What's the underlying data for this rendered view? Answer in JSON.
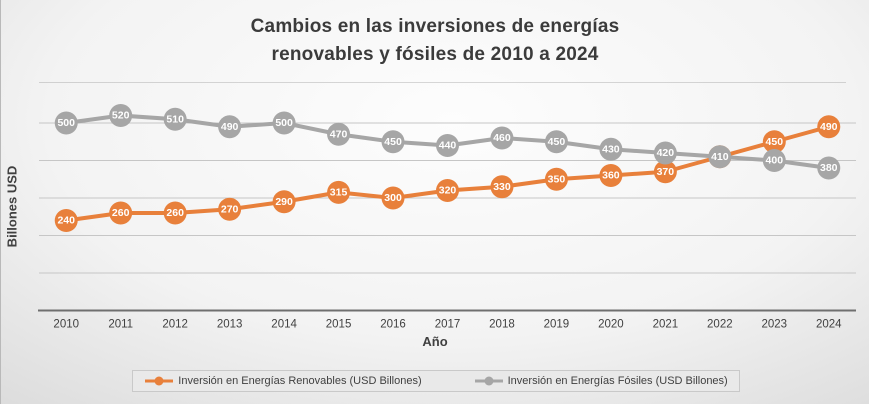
{
  "title": {
    "line1": "Cambios en las inversiones de energías",
    "line2": "renovables y fósiles de 2010 a 2024"
  },
  "chart_data": {
    "type": "line",
    "categories": [
      "2010",
      "2011",
      "2012",
      "2013",
      "2014",
      "2015",
      "2016",
      "2017",
      "2018",
      "2019",
      "2020",
      "2021",
      "2022",
      "2023",
      "2024"
    ],
    "series": [
      {
        "name": "Inversión en Energías Renovables (USD Billones)",
        "key": "renovables",
        "color": "#E8803B",
        "values": [
          240,
          260,
          260,
          270,
          290,
          315,
          300,
          320,
          330,
          350,
          360,
          370,
          410,
          450,
          490
        ]
      },
      {
        "name": "Inversión en Energías Fósiles (USD Billones)",
        "key": "fosiles",
        "color": "#A6A6A6",
        "values": [
          500,
          520,
          510,
          490,
          500,
          470,
          450,
          440,
          460,
          450,
          430,
          420,
          410,
          400,
          380
        ]
      }
    ],
    "title": "Cambios en las inversiones de energías renovables y fósiles de 2010 a 2024",
    "xlabel": "Año",
    "ylabel": "Billones USD",
    "ylim": [
      0,
      550
    ],
    "gridline_step": 100,
    "grid": true,
    "y_tick_labels_visible": false,
    "data_labels": "centered in markers, white bold",
    "legend_position": "bottom",
    "colors": {
      "axis_line": "#6f6f6f",
      "gridline": "#c6c6c6",
      "tick_text": "#404040",
      "title_text": "#3b3b3b",
      "data_label_text": "#ffffff"
    }
  },
  "legend": {
    "items": [
      {
        "label": "Inversión en Energías Renovables (USD Billones)"
      },
      {
        "label": "Inversión en Energías Fósiles (USD Billones)"
      }
    ]
  }
}
